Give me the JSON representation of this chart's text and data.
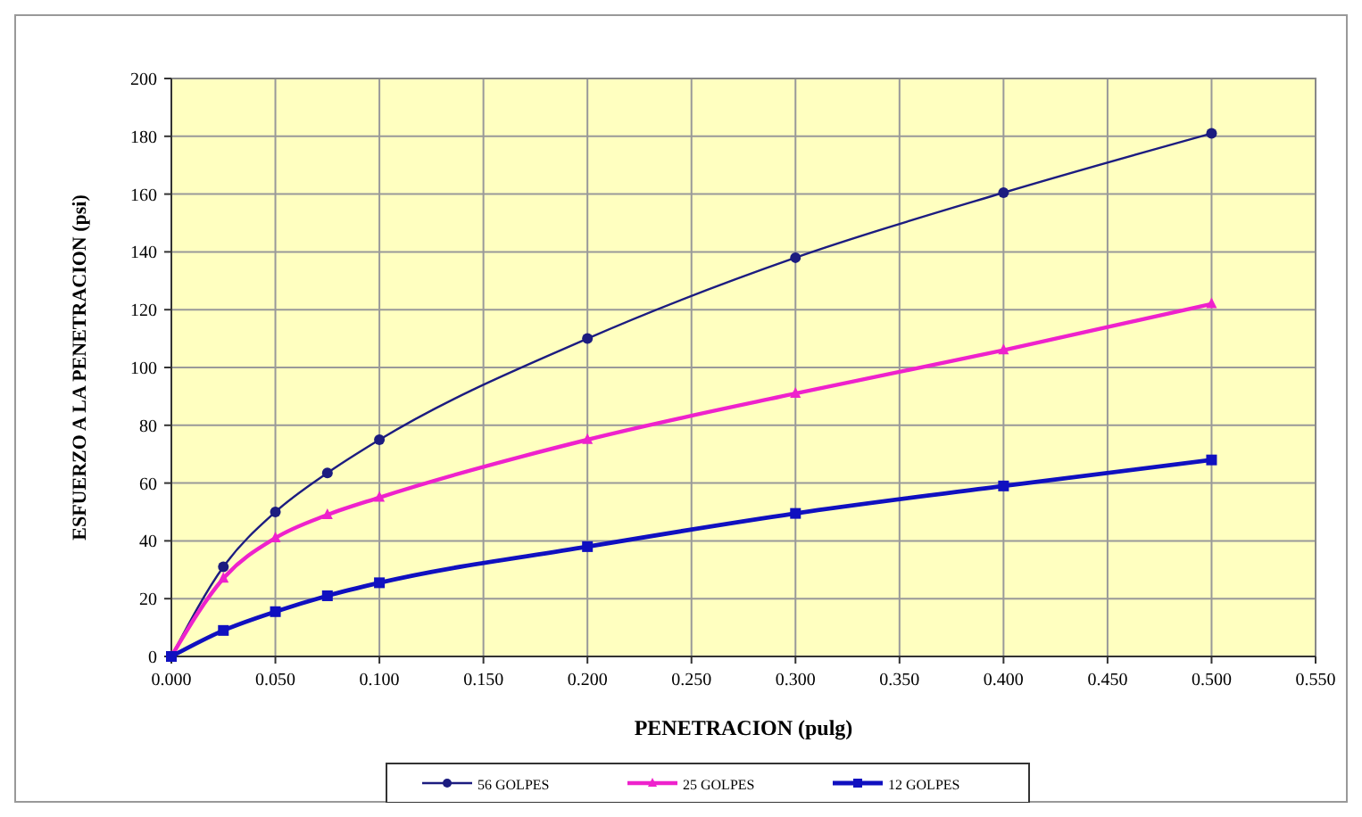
{
  "chart_data": {
    "type": "line",
    "xlabel": "PENETRACION (pulg)",
    "ylabel": "ESFUERZO A LA PENETRACION (psi)",
    "x": [
      0,
      0.025,
      0.05,
      0.075,
      0.1,
      0.2,
      0.3,
      0.4,
      0.5
    ],
    "series": [
      {
        "name": "56 GOLPES",
        "color": "#1c1c80",
        "marker": "circle",
        "values": [
          0,
          31,
          50,
          63.5,
          75,
          110,
          138,
          160.5,
          181
        ]
      },
      {
        "name": "25 GOLPES",
        "color": "#ee22cc",
        "marker": "triangle",
        "values": [
          0,
          27,
          41,
          49,
          55,
          75,
          91,
          106,
          122
        ]
      },
      {
        "name": "12 GOLPES",
        "color": "#1010c0",
        "marker": "square",
        "values": [
          0,
          9,
          15.5,
          21,
          25.5,
          38,
          49.5,
          59,
          68
        ]
      }
    ],
    "xlim": [
      0,
      0.55
    ],
    "xticks": [
      {
        "value": 0,
        "label": "0.000"
      },
      {
        "value": 0.05,
        "label": "0.050"
      },
      {
        "value": 0.1,
        "label": "0.100"
      },
      {
        "value": 0.15,
        "label": "0.150"
      },
      {
        "value": 0.2,
        "label": "0.200"
      },
      {
        "value": 0.25,
        "label": "0.250"
      },
      {
        "value": 0.3,
        "label": "0.300"
      },
      {
        "value": 0.35,
        "label": "0.350"
      },
      {
        "value": 0.4,
        "label": "0.400"
      },
      {
        "value": 0.45,
        "label": "0.450"
      },
      {
        "value": 0.5,
        "label": "0.500"
      },
      {
        "value": 0.55,
        "label": "0.550"
      }
    ],
    "ylim": [
      0,
      200
    ],
    "yticks": [
      0,
      20,
      40,
      60,
      80,
      100,
      120,
      140,
      160,
      180,
      200
    ],
    "grid": true,
    "legend": "bottom",
    "line_style": "solid"
  }
}
